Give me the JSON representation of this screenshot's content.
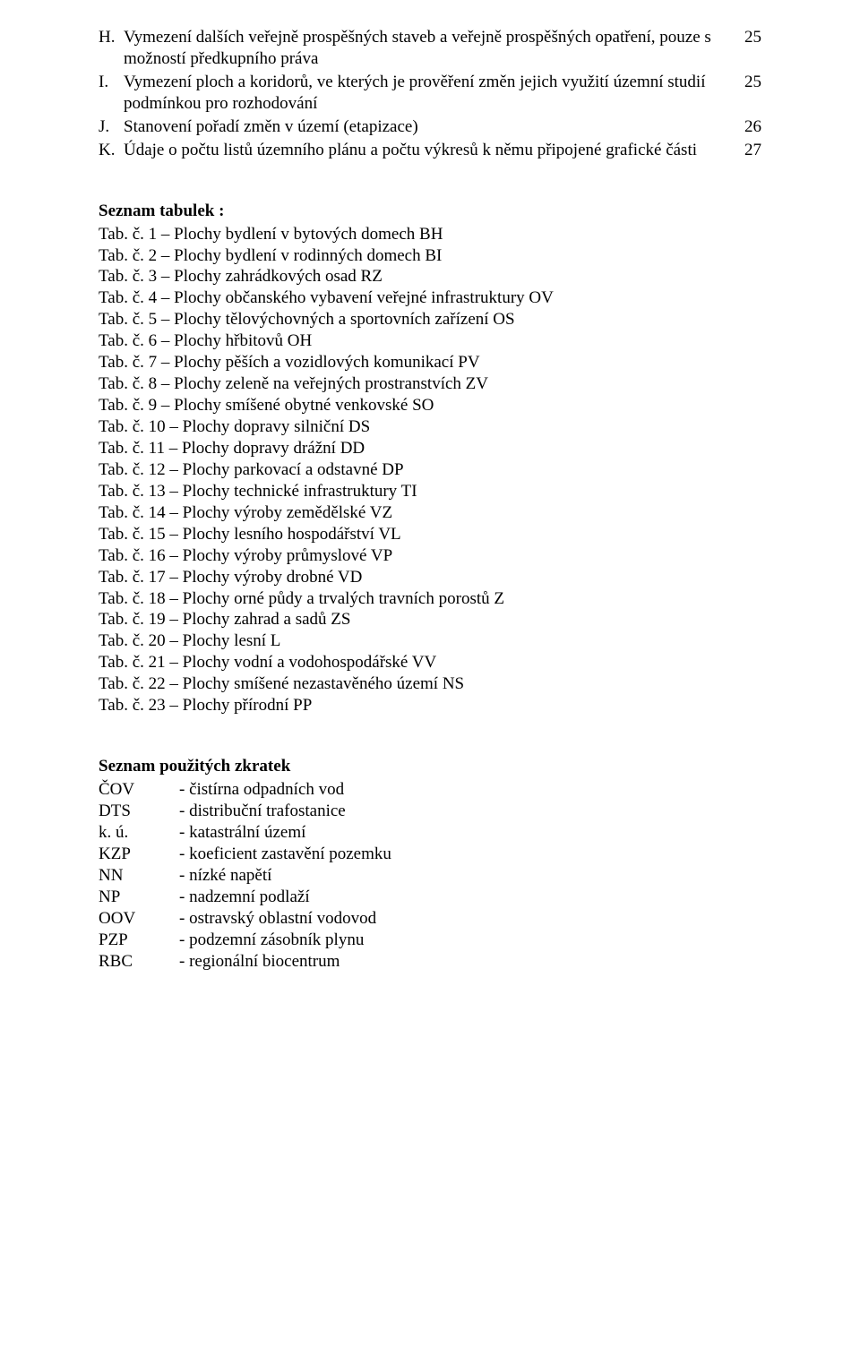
{
  "toc": [
    {
      "letter": "H.",
      "text": "Vymezení dalších veřejně prospěšných staveb a veřejně prospěšných opatření, pouze s možností předkupního práva",
      "page": "25"
    },
    {
      "letter": "I.",
      "text": "Vymezení ploch a koridorů, ve kterých je prověření změn jejich využití územní studií podmínkou pro rozhodování",
      "page": "25"
    },
    {
      "letter": "J.",
      "text": "Stanovení pořadí změn v území (etapizace)",
      "page": "26"
    },
    {
      "letter": "K.",
      "text": "Údaje o počtu listů územního plánu a počtu výkresů k němu připojené grafické části",
      "page": "27"
    }
  ],
  "tables_heading": "Seznam tabulek :",
  "tables": [
    "Tab. č. 1 – Plochy bydlení v bytových domech BH",
    "Tab. č. 2 – Plochy bydlení v rodinných domech BI",
    "Tab. č. 3 – Plochy zahrádkových osad RZ",
    "Tab. č. 4 – Plochy občanského vybavení veřejné infrastruktury OV",
    "Tab. č. 5 – Plochy tělovýchovných a sportovních zařízení OS",
    "Tab. č. 6 – Plochy hřbitovů OH",
    "Tab. č. 7 – Plochy pěších a vozidlových komunikací PV",
    "Tab. č. 8 – Plochy zeleně na veřejných prostranstvích ZV",
    "Tab. č. 9 – Plochy smíšené obytné venkovské SO",
    "Tab. č. 10 – Plochy dopravy silniční DS",
    "Tab. č. 11 – Plochy dopravy drážní DD",
    "Tab. č. 12 – Plochy parkovací a odstavné DP",
    "Tab. č. 13 – Plochy technické infrastruktury TI",
    "Tab. č. 14 – Plochy výroby zemědělské VZ",
    "Tab. č. 15 – Plochy lesního hospodářství VL",
    "Tab. č. 16 – Plochy výroby průmyslové  VP",
    "Tab. č. 17 – Plochy výroby drobné VD",
    "Tab. č. 18 – Plochy orné půdy a trvalých travních porostů Z",
    "Tab. č. 19 – Plochy zahrad a sadů  ZS",
    "Tab. č. 20 – Plochy lesní L",
    "Tab. č. 21 – Plochy vodní a vodohospodářské VV",
    "Tab. č. 22 – Plochy smíšené nezastavěného území NS",
    "Tab. č. 23 – Plochy přírodní PP"
  ],
  "abbrev_heading": "Seznam použitých zkratek",
  "abbrev": [
    {
      "code": "ČOV",
      "desc": "-  čistírna odpadních vod"
    },
    {
      "code": "DTS",
      "desc": "-  distribuční trafostanice"
    },
    {
      "code": "k. ú.",
      "desc": "-  katastrální území"
    },
    {
      "code": "KZP",
      "desc": "-  koeficient zastavění pozemku"
    },
    {
      "code": "NN",
      "desc": "-  nízké napětí"
    },
    {
      "code": "NP",
      "desc": "-  nadzemní podlaží"
    },
    {
      "code": "OOV",
      "desc": "-  ostravský oblastní vodovod"
    },
    {
      "code": "PZP",
      "desc": "-  podzemní zásobník plynu"
    },
    {
      "code": "RBC",
      "desc": "-  regionální biocentrum"
    }
  ]
}
